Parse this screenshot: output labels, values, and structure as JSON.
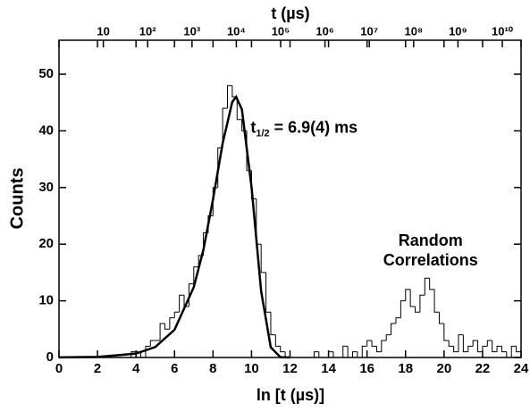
{
  "chart_data": {
    "type": "histogram",
    "xlabel": "ln [t (µs)]",
    "ylabel": "Counts",
    "x2label": "t (µs)",
    "xlim": [
      0,
      24
    ],
    "ylim": [
      0,
      56
    ],
    "xticks": [
      0,
      2,
      4,
      6,
      8,
      10,
      12,
      14,
      16,
      18,
      20,
      22,
      24
    ],
    "yticks": [
      0,
      10,
      20,
      30,
      40,
      50
    ],
    "x2ticks": [
      {
        "value": 2.302585,
        "label": "10"
      },
      {
        "value": 4.60517,
        "label": "10²"
      },
      {
        "value": 6.907755,
        "label": "10³"
      },
      {
        "value": 9.21034,
        "label": "10⁴"
      },
      {
        "value": 11.512925,
        "label": "10⁵"
      },
      {
        "value": 13.81551,
        "label": "10⁶"
      },
      {
        "value": 16.118096,
        "label": "10⁷"
      },
      {
        "value": 18.420681,
        "label": "10⁸"
      },
      {
        "value": 20.723266,
        "label": "10⁹"
      },
      {
        "value": 23.025851,
        "label": "10¹⁰"
      }
    ],
    "color": "#000000",
    "bins": [
      0,
      0.25,
      0.5,
      0.75,
      1,
      1.25,
      1.5,
      1.75,
      2,
      2.25,
      2.5,
      2.75,
      3,
      3.25,
      3.5,
      3.75,
      4,
      4.25,
      4.5,
      4.75,
      5,
      5.25,
      5.5,
      5.75,
      6,
      6.25,
      6.5,
      6.75,
      7,
      7.25,
      7.5,
      7.75,
      8,
      8.25,
      8.5,
      8.75,
      9,
      9.25,
      9.5,
      9.75,
      10,
      10.25,
      10.5,
      10.75,
      11,
      11.25,
      11.5,
      11.75,
      12,
      12.25,
      12.5,
      12.75,
      13,
      13.25,
      13.5,
      13.75,
      14,
      14.25,
      14.5,
      14.75,
      15,
      15.25,
      15.5,
      15.75,
      16,
      16.25,
      16.5,
      16.75,
      17,
      17.25,
      17.5,
      17.75,
      18,
      18.25,
      18.5,
      18.75,
      19,
      19.25,
      19.5,
      19.75,
      20,
      20.25,
      20.5,
      20.75,
      21,
      21.25,
      21.5,
      21.75,
      22,
      22.25,
      22.5,
      22.75,
      23,
      23.25,
      23.5,
      23.75,
      24
    ],
    "values": [
      0,
      0,
      0,
      0,
      0,
      0,
      0,
      0,
      0,
      0,
      0,
      0,
      0,
      0,
      0,
      1,
      1,
      0,
      2,
      3,
      3,
      6,
      5,
      7,
      8,
      11,
      9,
      13,
      16,
      18,
      22,
      25,
      30,
      37,
      44,
      48,
      46,
      42,
      40,
      33,
      28,
      20,
      15,
      8,
      4,
      2,
      1,
      0,
      0,
      0,
      0,
      0,
      0,
      1,
      0,
      0,
      1,
      0,
      0,
      2,
      0,
      1,
      0,
      2,
      3,
      2,
      1,
      3,
      4,
      6,
      7,
      10,
      12,
      9,
      8,
      11,
      14,
      12,
      8,
      6,
      3,
      2,
      1,
      4,
      1,
      2,
      3,
      1,
      2,
      3,
      1,
      2,
      1,
      0,
      2,
      1
    ],
    "curve": {
      "x": [
        0,
        2,
        4,
        5,
        6,
        7,
        7.5,
        8,
        8.5,
        9,
        9.2,
        9.5,
        10,
        10.5,
        11,
        11.5,
        12
      ],
      "y": [
        0.01,
        0.09,
        0.69,
        1.85,
        4.89,
        12.4,
        19.0,
        27.9,
        37.8,
        45.1,
        46,
        43.8,
        30.1,
        11.7,
        1.79,
        0.06,
        0
      ],
      "color": "#000000"
    },
    "annotation": {
      "symbol": "t",
      "subscript": "1/2",
      "text": " = 6.9(4) ms",
      "x": 9.95,
      "y": 40.5
    },
    "region_label": {
      "lines": [
        "Random",
        "Correlations"
      ],
      "x": 19.3,
      "y": 20.5
    }
  }
}
